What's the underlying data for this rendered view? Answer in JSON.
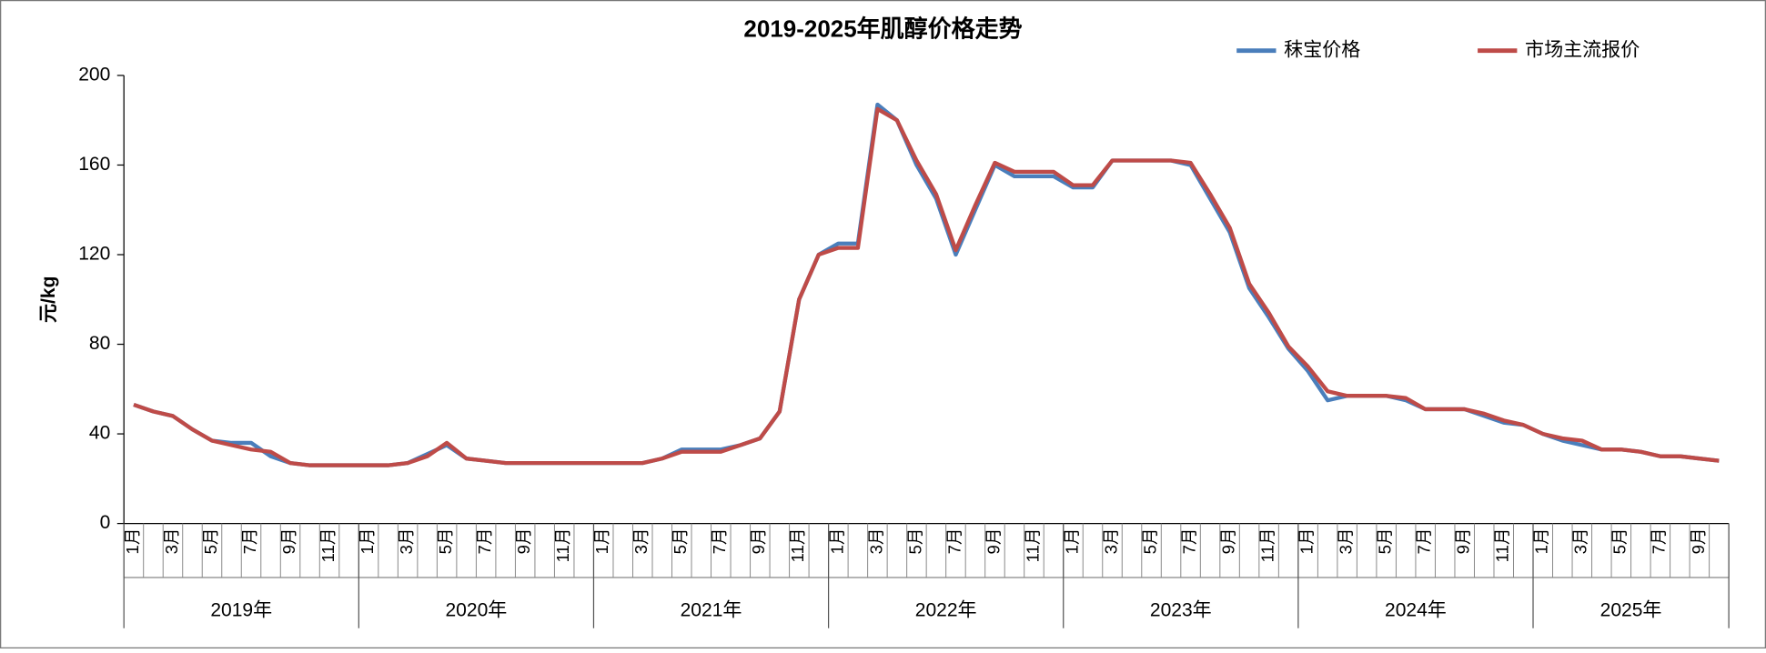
{
  "chart_data": {
    "type": "line",
    "title": "2019-2025年肌醇价格走势",
    "y_label": "元/kg",
    "categories": [
      "1月",
      null,
      "3月",
      null,
      "5月",
      null,
      "7月",
      null,
      "9月",
      null,
      "11月",
      null,
      "1月",
      null,
      "3月",
      null,
      "5月",
      null,
      "7月",
      null,
      "9月",
      null,
      "11月",
      null,
      "1月",
      null,
      "3月",
      null,
      "5月",
      null,
      "7月",
      null,
      "9月",
      null,
      "11月",
      null,
      "1月",
      null,
      "3月",
      null,
      "5月",
      null,
      "7月",
      null,
      "9月",
      null,
      "11月",
      null,
      "1月",
      null,
      "3月",
      null,
      "5月",
      null,
      "7月",
      null,
      "9月",
      null,
      "11月",
      null,
      "1月",
      null,
      "3月",
      null,
      "5月",
      null,
      "7月",
      null,
      "9月",
      null,
      "11月",
      null,
      "1月",
      null,
      "3月",
      null,
      "5月",
      null,
      "7月",
      null,
      "9月",
      null
    ],
    "year_labels": [
      "2019年",
      "2020年",
      "2021年",
      "2022年",
      "2023年",
      "2024年",
      "2025年"
    ],
    "series": [
      {
        "name": "秣宝价格",
        "color": "#4a7ebb",
        "values": [
          53,
          50,
          48,
          42,
          37,
          36,
          36,
          30,
          27,
          26,
          26,
          26,
          26,
          26,
          27,
          31,
          35,
          29,
          28,
          27,
          27,
          27,
          27,
          27,
          27,
          27,
          27,
          29,
          33,
          33,
          33,
          35,
          38,
          50,
          100,
          120,
          125,
          125,
          187,
          180,
          160,
          145,
          120,
          140,
          160,
          155,
          155,
          155,
          150,
          150,
          162,
          162,
          162,
          162,
          160,
          145,
          130,
          105,
          92,
          78,
          68,
          55,
          57,
          57,
          57,
          55,
          51,
          51,
          51,
          48,
          45,
          44,
          40,
          37,
          35,
          33,
          33,
          32,
          30,
          30,
          29,
          28
        ]
      },
      {
        "name": "市场主流报价",
        "color": "#be4b48",
        "values": [
          53,
          50,
          48,
          42,
          37,
          35,
          33,
          32,
          27,
          26,
          26,
          26,
          26,
          26,
          27,
          30,
          36,
          29,
          28,
          27,
          27,
          27,
          27,
          27,
          27,
          27,
          27,
          29,
          32,
          32,
          32,
          35,
          38,
          50,
          100,
          120,
          123,
          123,
          185,
          180,
          162,
          147,
          122,
          142,
          161,
          157,
          157,
          157,
          151,
          151,
          162,
          162,
          162,
          162,
          161,
          147,
          132,
          107,
          94,
          79,
          70,
          59,
          57,
          57,
          57,
          56,
          51,
          51,
          51,
          49,
          46,
          44,
          40,
          38,
          37,
          33,
          33,
          32,
          30,
          30,
          29,
          28
        ]
      }
    ],
    "ylim": [
      0,
      200
    ],
    "yticks": [
      0,
      40,
      80,
      120,
      160,
      200
    ],
    "legend": "top-right"
  }
}
